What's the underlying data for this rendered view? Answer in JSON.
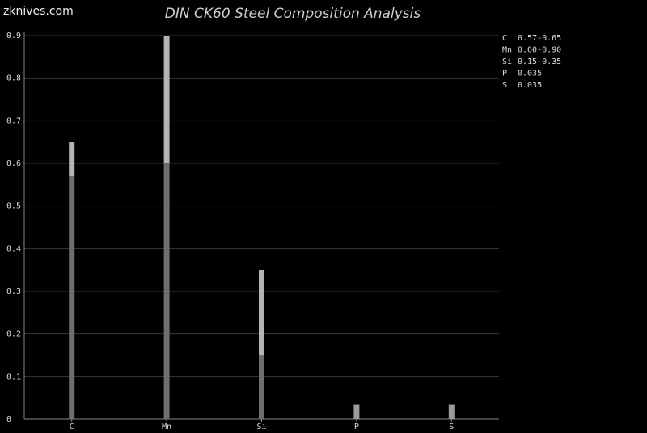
{
  "site": "zknives.com",
  "chart_data": {
    "type": "range_bar",
    "title": "DIN CK60 Steel Composition Analysis",
    "categories": [
      "C",
      "Mn",
      "Si",
      "P",
      "S"
    ],
    "low": [
      0.57,
      0.6,
      0.15,
      null,
      null
    ],
    "high": [
      0.65,
      0.9,
      0.35,
      0.035,
      0.035
    ],
    "range_labels": [
      "0.57-0.65",
      "0.60-0.90",
      "0.15-0.35",
      "0.035",
      "0.035"
    ],
    "colors": {
      "low": "#6e6e6e",
      "high": "#b4b4b4",
      "single": "#9a9a9a"
    },
    "ylim": [
      0,
      0.9
    ],
    "yticks": [
      0,
      0.1,
      0.2,
      0.3,
      0.4,
      0.5,
      0.6,
      0.7,
      0.8,
      0.9
    ],
    "grid": true,
    "legend": "top-right"
  }
}
